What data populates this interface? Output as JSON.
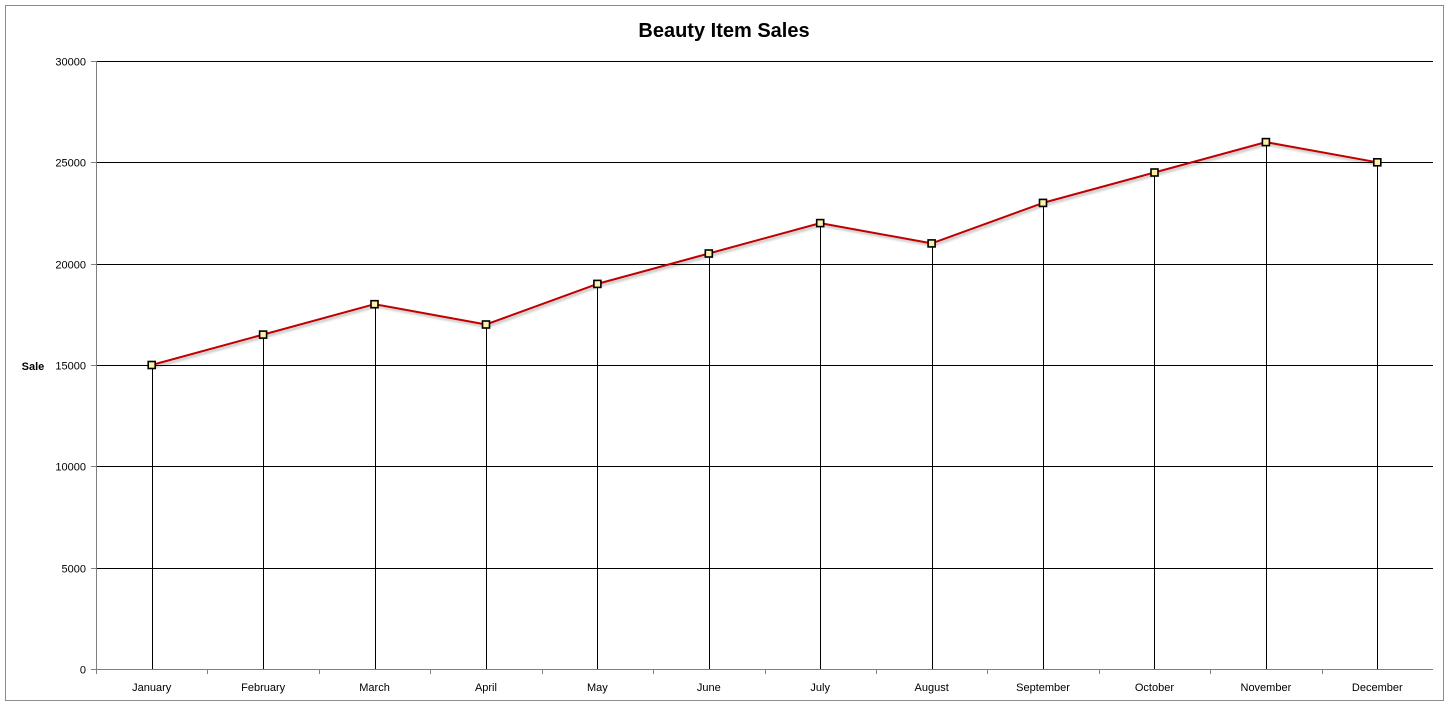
{
  "chart_data": {
    "type": "line",
    "title": "Beauty Item Sales",
    "xlabel": "",
    "ylabel": "Sale",
    "categories": [
      "January",
      "February",
      "March",
      "April",
      "May",
      "June",
      "July",
      "August",
      "September",
      "October",
      "November",
      "December"
    ],
    "series": [
      {
        "values": [
          15000,
          16500,
          18000,
          17000,
          19000,
          20500,
          22000,
          21000,
          23000,
          24500,
          26000,
          25000
        ]
      }
    ],
    "ylim": [
      0,
      30000
    ],
    "yticks": [
      0,
      5000,
      10000,
      15000,
      20000,
      25000,
      30000
    ],
    "grid": true,
    "drop_lines": true,
    "legend": "none",
    "colors": {
      "line": "#c00000",
      "marker_fill": "#fff2a8",
      "marker_edge": "#000000",
      "grid": "#000000",
      "frame": "#8c8c8c"
    }
  }
}
